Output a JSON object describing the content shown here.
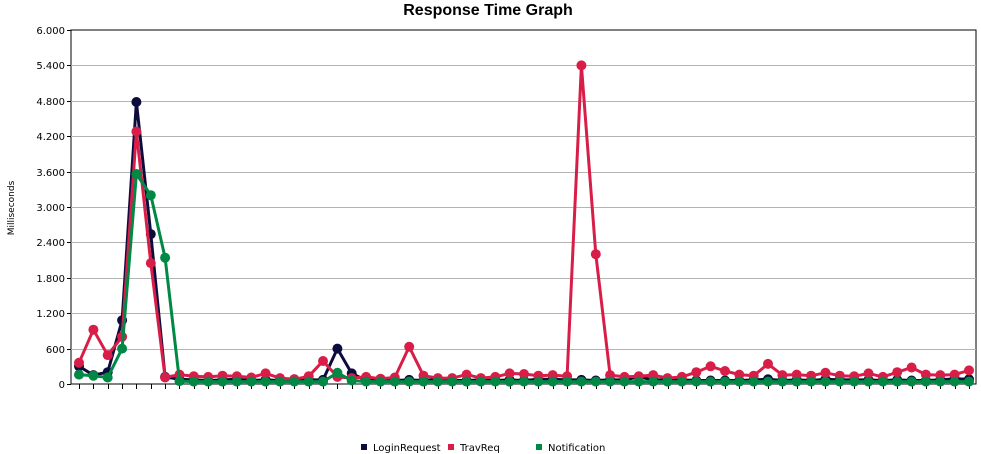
{
  "chart_data": {
    "type": "line",
    "title": "Response Time Graph",
    "xlabel": "",
    "ylabel": "Milliseconds",
    "ylim": [
      0,
      6000
    ],
    "yticks": [
      0,
      600,
      1200,
      1800,
      2400,
      3000,
      3600,
      4200,
      4800,
      5400,
      6000
    ],
    "ytick_labels": [
      "0",
      "600",
      "1.200",
      "1.800",
      "2.400",
      "3.000",
      "3.600",
      "4.200",
      "4.800",
      "5.400",
      "6.000"
    ],
    "grid": true,
    "legend_position": "bottom",
    "x": [
      1,
      2,
      3,
      4,
      5,
      6,
      7,
      8,
      9,
      10,
      11,
      12,
      13,
      14,
      15,
      16,
      17,
      18,
      19,
      20,
      21,
      22,
      23,
      24,
      25,
      26,
      27,
      28,
      29,
      30,
      31,
      32,
      33,
      34,
      35,
      36,
      37,
      38,
      39,
      40,
      41,
      42,
      43,
      44,
      45,
      46,
      47,
      48,
      49,
      50,
      51,
      52,
      53,
      54,
      55,
      56,
      57,
      58,
      59,
      60,
      61,
      62,
      63
    ],
    "series": [
      {
        "name": "LoginRequest",
        "color": "#0d0d3d",
        "values": [
          300,
          150,
          200,
          1080,
          4780,
          2540,
          120,
          80,
          70,
          60,
          70,
          80,
          60,
          70,
          60,
          80,
          70,
          70,
          600,
          180,
          60,
          60,
          60,
          70,
          60,
          80,
          60,
          60,
          70,
          60,
          70,
          60,
          80,
          80,
          70,
          70,
          60,
          70,
          70,
          120,
          70,
          70,
          70,
          60,
          60,
          60,
          60,
          70,
          80,
          60,
          70,
          60,
          80,
          70,
          70,
          70,
          60,
          70,
          60,
          60,
          70,
          90,
          80
        ]
      },
      {
        "name": "TravReq",
        "color": "#d81e48",
        "values": [
          360,
          920,
          490,
          800,
          4280,
          2050,
          110,
          160,
          130,
          120,
          140,
          130,
          110,
          180,
          100,
          80,
          130,
          390,
          120,
          100,
          120,
          90,
          110,
          630,
          140,
          100,
          100,
          160,
          100,
          120,
          180,
          170,
          140,
          150,
          130,
          5400,
          2200,
          150,
          120,
          130,
          150,
          100,
          120,
          200,
          300,
          220,
          160,
          140,
          340,
          150,
          160,
          140,
          190,
          140,
          130,
          180,
          120,
          200,
          280,
          160,
          150,
          160,
          230
        ]
      },
      {
        "name": "Notification",
        "color": "#008844",
        "values": [
          160,
          140,
          110,
          600,
          3560,
          3200,
          2140,
          50,
          40,
          40,
          40,
          40,
          40,
          40,
          40,
          40,
          40,
          40,
          190,
          60,
          40,
          40,
          40,
          40,
          40,
          40,
          40,
          40,
          40,
          40,
          40,
          40,
          40,
          40,
          40,
          40,
          40,
          40,
          40,
          40,
          40,
          40,
          40,
          40,
          40,
          40,
          40,
          40,
          40,
          40,
          40,
          40,
          40,
          40,
          40,
          40,
          40,
          40,
          40,
          40,
          40,
          40,
          40
        ]
      }
    ]
  }
}
